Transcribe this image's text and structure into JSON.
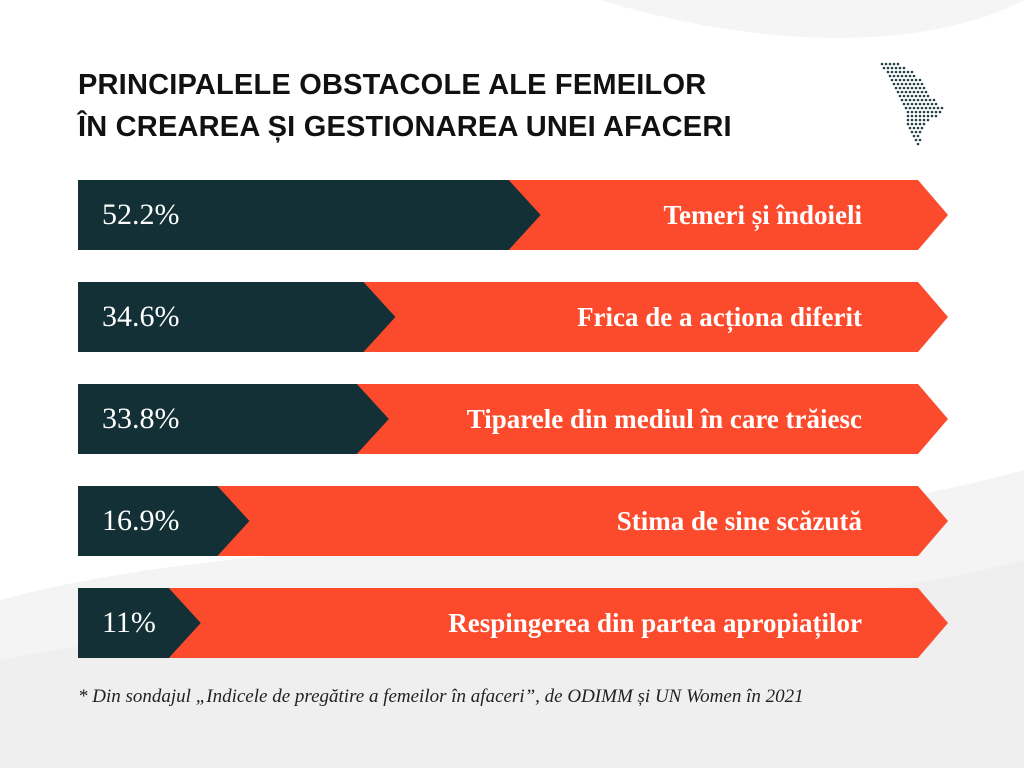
{
  "title": {
    "line1": "PRINCIPALELE OBSTACOLE ALE FEMEILOR",
    "line2": "ÎN CREAREA ȘI GESTIONAREA UNEI AFACERI"
  },
  "logo": {
    "icon": "moldova-dotted-map-icon"
  },
  "colors": {
    "dark": "#123035",
    "accent": "#fc4a2d",
    "text_on_bar": "#ffffff",
    "title": "#111111"
  },
  "chart_data": {
    "type": "bar",
    "orientation": "horizontal",
    "unit": "%",
    "categories": [
      "Temeri și îndoieli",
      "Frica de a acționa diferit",
      "Tiparele din mediul în care trăiesc",
      "Stima de sine scăzută",
      "Respingerea din partea apropiaților"
    ],
    "values": [
      52.2,
      34.6,
      33.8,
      16.9,
      11
    ],
    "value_labels": [
      "52.2%",
      "34.6%",
      "33.8%",
      "16.9%",
      "11%"
    ],
    "xlim": [
      0,
      100
    ],
    "grid": false,
    "legend": "none"
  },
  "footnote": "* Din sondajul „Indicele de pregătire a femeilor în afaceri”, de ODIMM și UN Women în 2021"
}
